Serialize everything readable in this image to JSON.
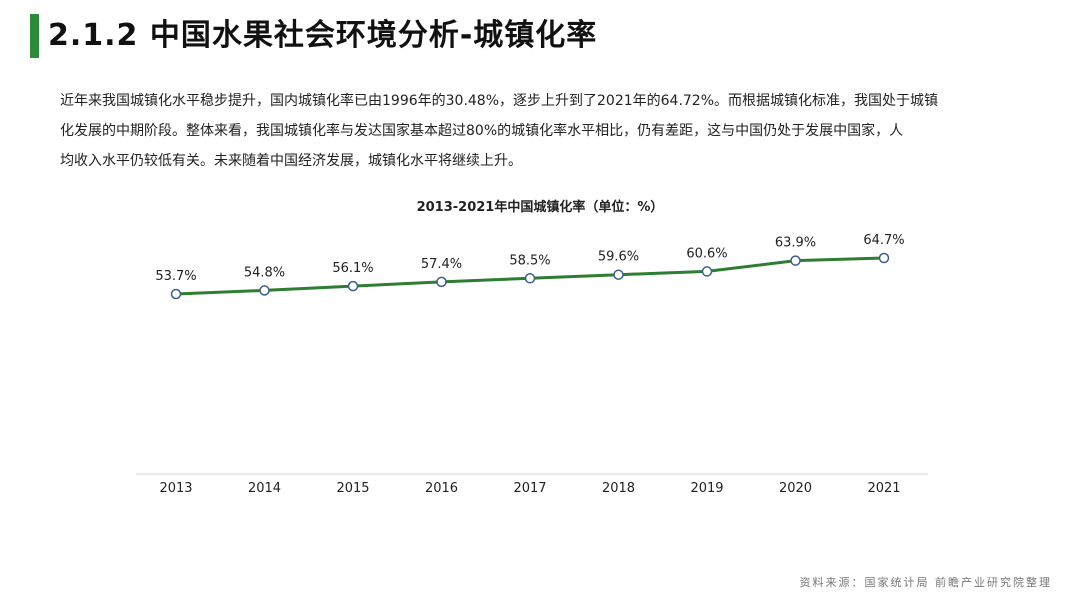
{
  "header": {
    "title": "2.1.2 中国水果社会环境分析-城镇化率",
    "accent_color": "#2e8b3a"
  },
  "body_text": {
    "lines": [
      "近年来我国城镇化水平稳步提升，国内城镇化率已由1996年的30.48%，逐步上升到了2021年的64.72%。而根据城镇化标准，我国处于城镇",
      "化发展的中期阶段。整体来看，我国城镇化率与发达国家基本超过80%的城镇化率水平相比，仍有差距，这与中国仍处于发展中国家，人",
      "均收入水平仍较低有关。未来随着中国经济发展，城镇化水平将继续上升。"
    ]
  },
  "chart_data": {
    "type": "line",
    "title": "2013-2021年中国城镇化率（单位：%）",
    "categories": [
      "2013",
      "2014",
      "2015",
      "2016",
      "2017",
      "2018",
      "2019",
      "2020",
      "2021"
    ],
    "series": [
      {
        "values": [
          53.7,
          54.8,
          56.1,
          57.4,
          58.5,
          59.6,
          60.6,
          63.9,
          64.7
        ],
        "labels": [
          "53.7%",
          "54.8%",
          "56.1%",
          "57.4%",
          "58.5%",
          "59.6%",
          "60.6%",
          "63.9%",
          "64.7%"
        ],
        "color": "#2e7d32"
      }
    ],
    "ylim": [
      0,
      75
    ],
    "grid": false,
    "legend": "none",
    "drop_lines": true
  },
  "footer": {
    "source": "资料来源：国家统计局 前瞻产业研究院整理"
  }
}
